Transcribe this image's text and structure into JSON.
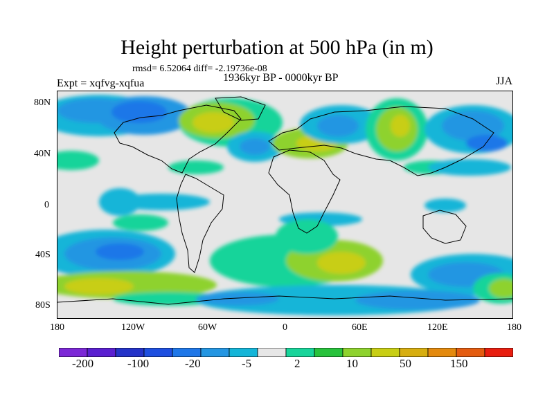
{
  "header": {
    "title": "Height perturbation at 500 hPa (in m)",
    "stats": "rmsd= 6.52064 diff= -2.19736e-08",
    "period": "1936kyr BP - 0000kyr BP",
    "experiment": "Expt = xqfvg-xqfua",
    "season": "JJA"
  },
  "map": {
    "lat_labels": [
      "80N",
      "40N",
      "0",
      "40S",
      "80S"
    ],
    "lon_labels": [
      "180",
      "120W",
      "60W",
      "0",
      "60E",
      "120E",
      "180"
    ]
  },
  "colorbar": {
    "colors": [
      "#7c28d6",
      "#5a1fd0",
      "#2433c8",
      "#1e4fe0",
      "#1f77e8",
      "#2496e2",
      "#14b5d8",
      "#e6e6e6",
      "#18d49a",
      "#28c23c",
      "#8ed22e",
      "#c8ce14",
      "#d7ae10",
      "#e48a0e",
      "#e45c10",
      "#e81e10"
    ],
    "labels": [
      "-200",
      "-100",
      "-20",
      "-5",
      "2",
      "10",
      "50",
      "150"
    ]
  },
  "palette": {
    "neutral": "#e6e6e6",
    "land_outline": "#000000"
  }
}
